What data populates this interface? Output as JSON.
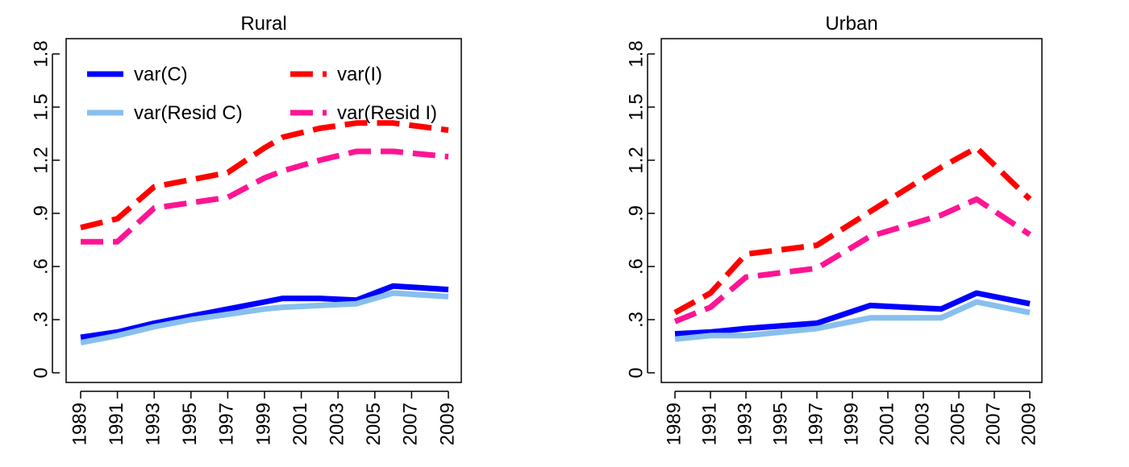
{
  "chart_data": [
    {
      "type": "line",
      "title": "Rural",
      "xlabel": "",
      "ylabel": "",
      "x": [
        1989,
        1991,
        1993,
        1995,
        1997,
        1999,
        2000,
        2002,
        2004,
        2006,
        2009
      ],
      "x_tick_labels": [
        "1989",
        "1991",
        "1993",
        "1995",
        "1997",
        "1999",
        "2001",
        "2003",
        "2005",
        "2007",
        "2009"
      ],
      "y_tick_labels": [
        "0",
        ".3",
        ".6",
        ".9",
        "1.2",
        "1.5",
        "1.8"
      ],
      "ylim": [
        0,
        1.8
      ],
      "legend": "top-left, inside plot, two columns",
      "series": [
        {
          "name": "var(C)",
          "color": "#0000ff",
          "dash": "solid",
          "values": [
            0.2,
            0.23,
            0.28,
            0.32,
            0.36,
            0.4,
            0.42,
            0.42,
            0.41,
            0.49,
            0.47
          ]
        },
        {
          "name": "var(Resid C)",
          "color": "#87bfee",
          "dash": "solid",
          "values": [
            0.17,
            0.21,
            0.26,
            0.3,
            0.33,
            0.36,
            0.37,
            0.38,
            0.39,
            0.45,
            0.43
          ]
        },
        {
          "name": "var(I)",
          "color": "#ff0000",
          "dash": "dashed",
          "values": [
            0.82,
            0.87,
            1.05,
            1.09,
            1.13,
            1.27,
            1.33,
            1.38,
            1.41,
            1.41,
            1.37
          ]
        },
        {
          "name": "var(Resid I)",
          "color": "#ff1493",
          "dash": "dashed",
          "values": [
            0.74,
            0.74,
            0.93,
            0.96,
            0.99,
            1.1,
            1.14,
            1.2,
            1.25,
            1.25,
            1.22
          ]
        }
      ]
    },
    {
      "type": "line",
      "title": "Urban",
      "xlabel": "",
      "ylabel": "",
      "x": [
        1989,
        1991,
        1993,
        1997,
        2000,
        2004,
        2006,
        2009
      ],
      "x_tick_labels": [
        "1989",
        "1991",
        "1993",
        "1995",
        "1997",
        "1999",
        "2001",
        "2003",
        "2005",
        "2007",
        "2009"
      ],
      "y_tick_labels": [
        "0",
        ".3",
        ".6",
        ".9",
        "1.2",
        "1.5",
        "1.8"
      ],
      "ylim": [
        0,
        1.8
      ],
      "legend": "none",
      "series": [
        {
          "name": "var(C)",
          "color": "#0000ff",
          "dash": "solid",
          "values": [
            0.22,
            0.23,
            0.25,
            0.28,
            0.38,
            0.36,
            0.45,
            0.39
          ]
        },
        {
          "name": "var(Resid C)",
          "color": "#87bfee",
          "dash": "solid",
          "values": [
            0.19,
            0.21,
            0.21,
            0.25,
            0.31,
            0.31,
            0.4,
            0.34
          ]
        },
        {
          "name": "var(I)",
          "color": "#ff0000",
          "dash": "dashed",
          "values": [
            0.34,
            0.45,
            0.67,
            0.72,
            0.91,
            1.16,
            1.27,
            0.98
          ]
        },
        {
          "name": "var(Resid I)",
          "color": "#ff1493",
          "dash": "dashed",
          "values": [
            0.29,
            0.37,
            0.54,
            0.59,
            0.77,
            0.89,
            0.98,
            0.78
          ]
        }
      ]
    }
  ]
}
